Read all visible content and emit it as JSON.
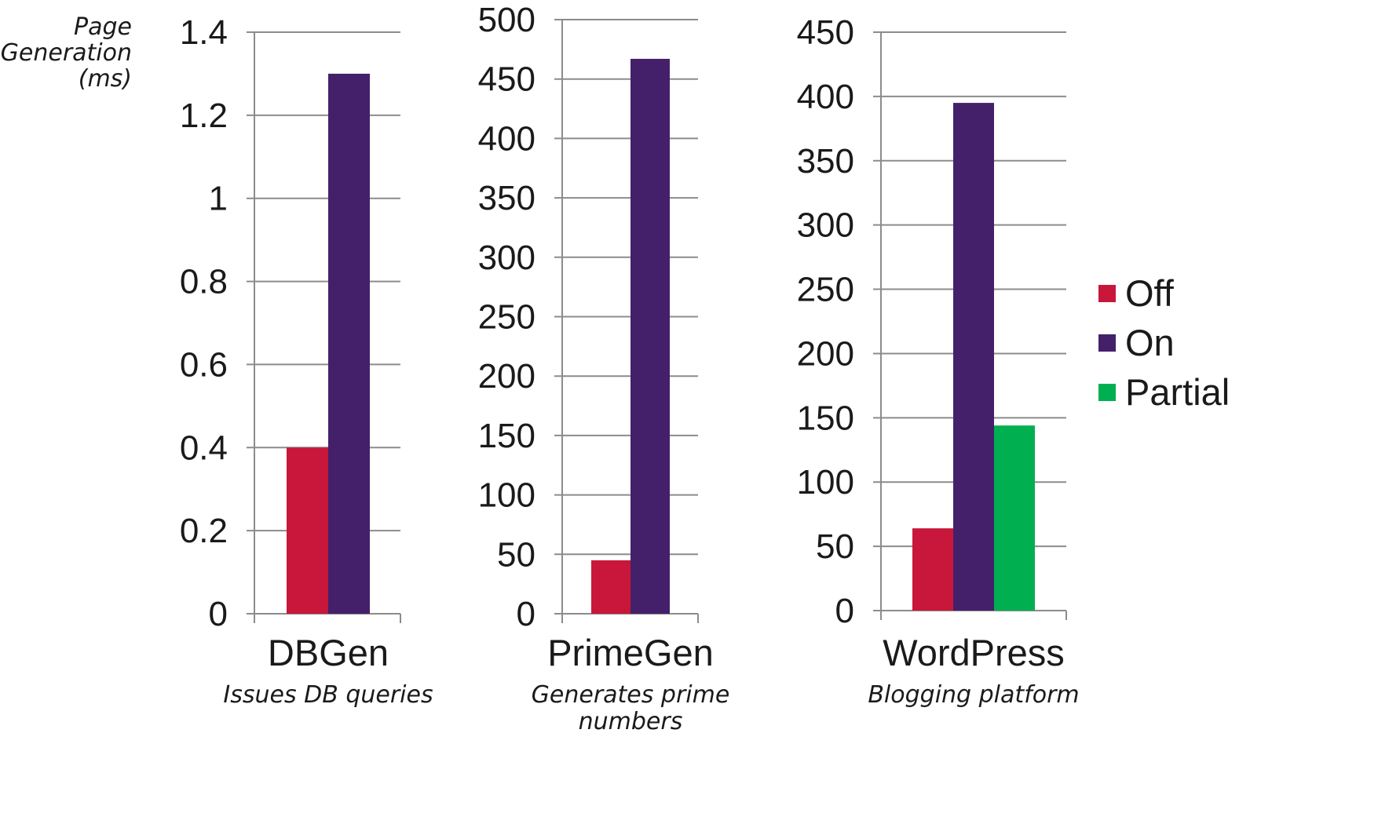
{
  "ylabel": "Page\nGeneration\n(ms)",
  "legend": {
    "position": "right",
    "entries": [
      {
        "label": "Off",
        "color": "#c8173a"
      },
      {
        "label": "On",
        "color": "#44206a"
      },
      {
        "label": "Partial",
        "color": "#00b050"
      }
    ]
  },
  "chart_data": [
    {
      "type": "bar",
      "title": "",
      "categories": [
        "DBGen"
      ],
      "category_label": "DBGen",
      "subtitle": "Issues DB queries",
      "ylim": [
        0,
        1.4
      ],
      "ticks": [
        "0",
        "0.2",
        "0.4",
        "0.6",
        "0.8",
        "1",
        "1.2",
        "1.4"
      ],
      "tick_values": [
        0,
        0.2,
        0.4,
        0.6,
        0.8,
        1,
        1.2,
        1.4
      ],
      "grid": true,
      "series": [
        {
          "name": "Off",
          "color": "#c8173a",
          "values": [
            0.4
          ]
        },
        {
          "name": "On",
          "color": "#44206a",
          "values": [
            1.3
          ]
        }
      ]
    },
    {
      "type": "bar",
      "title": "",
      "categories": [
        "PrimeGen"
      ],
      "category_label": "PrimeGen",
      "subtitle": "Generates prime\nnumbers",
      "ylim": [
        0,
        500
      ],
      "ticks": [
        "0",
        "50",
        "100",
        "150",
        "200",
        "250",
        "300",
        "350",
        "400",
        "450",
        "500"
      ],
      "tick_values": [
        0,
        50,
        100,
        150,
        200,
        250,
        300,
        350,
        400,
        450,
        500
      ],
      "grid": true,
      "series": [
        {
          "name": "Off",
          "color": "#c8173a",
          "values": [
            45
          ]
        },
        {
          "name": "On",
          "color": "#44206a",
          "values": [
            467
          ]
        }
      ]
    },
    {
      "type": "bar",
      "title": "",
      "categories": [
        "WordPress"
      ],
      "category_label": "WordPress",
      "subtitle": "Blogging platform",
      "ylim": [
        0,
        450
      ],
      "ticks": [
        "0",
        "50",
        "100",
        "150",
        "200",
        "250",
        "300",
        "350",
        "400",
        "450"
      ],
      "tick_values": [
        0,
        50,
        100,
        150,
        200,
        250,
        300,
        350,
        400,
        450
      ],
      "grid": true,
      "series": [
        {
          "name": "Off",
          "color": "#c8173a",
          "values": [
            64
          ]
        },
        {
          "name": "On",
          "color": "#44206a",
          "values": [
            395
          ]
        },
        {
          "name": "Partial",
          "color": "#00b050",
          "values": [
            144
          ]
        }
      ]
    }
  ]
}
